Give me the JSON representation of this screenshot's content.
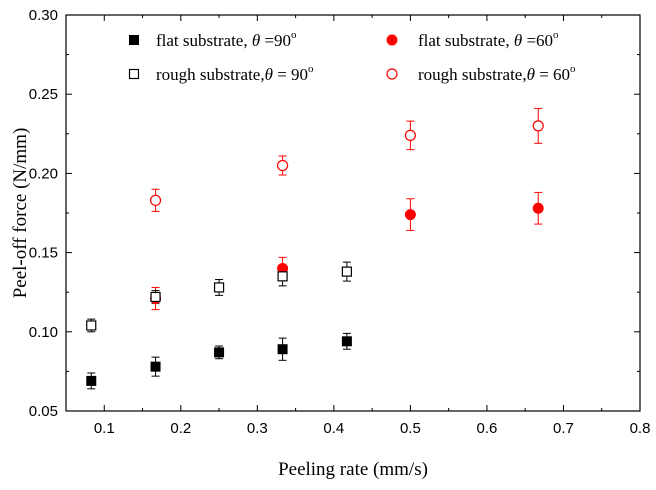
{
  "chart_data": {
    "type": "scatter",
    "xlabel": "Peeling rate (mm/s)",
    "ylabel": "Peel-off force (N/mm)",
    "xlim": [
      0.05,
      0.8
    ],
    "ylim": [
      0.05,
      0.3
    ],
    "xticks": [
      "0.1",
      "0.2",
      "0.3",
      "0.4",
      "0.5",
      "0.6",
      "0.7",
      "0.8"
    ],
    "yticks": [
      "0.05",
      "0.10",
      "0.15",
      "0.20",
      "0.25",
      "0.30"
    ],
    "grid": false,
    "legend_placement": "top",
    "series": [
      {
        "name": "flat substrate, θ =90",
        "legend_parts": [
          "flat substrate, ",
          "θ",
          " =90",
          "o"
        ],
        "marker": "filled-square",
        "color": "#000000",
        "points": [
          {
            "x": 0.083,
            "y": 0.069,
            "err": 0.005
          },
          {
            "x": 0.167,
            "y": 0.078,
            "err": 0.006
          },
          {
            "x": 0.25,
            "y": 0.087,
            "err": 0.004
          },
          {
            "x": 0.333,
            "y": 0.089,
            "err": 0.007
          },
          {
            "x": 0.417,
            "y": 0.094,
            "err": 0.005
          }
        ]
      },
      {
        "name": "flat substrate, θ =60",
        "legend_parts": [
          "flat substrate, ",
          "θ",
          " =60",
          "o"
        ],
        "marker": "filled-circle",
        "color": "#ff0000",
        "points": [
          {
            "x": 0.167,
            "y": 0.121,
            "err": 0.007
          },
          {
            "x": 0.333,
            "y": 0.14,
            "err": 0.007
          },
          {
            "x": 0.5,
            "y": 0.174,
            "err": 0.01
          },
          {
            "x": 0.667,
            "y": 0.178,
            "err": 0.01
          }
        ]
      },
      {
        "name": "rough substrate,θ = 90",
        "legend_parts": [
          "rough substrate,",
          "θ",
          " = 90",
          "o"
        ],
        "marker": "open-square",
        "color": "#000000",
        "points": [
          {
            "x": 0.083,
            "y": 0.104,
            "err": 0.004
          },
          {
            "x": 0.167,
            "y": 0.122,
            "err": 0.004
          },
          {
            "x": 0.25,
            "y": 0.128,
            "err": 0.005
          },
          {
            "x": 0.333,
            "y": 0.135,
            "err": 0.006
          },
          {
            "x": 0.417,
            "y": 0.138,
            "err": 0.006
          }
        ]
      },
      {
        "name": "rough substrate,θ = 60",
        "legend_parts": [
          "rough substrate,",
          "θ",
          " = 60",
          "o"
        ],
        "marker": "open-circle",
        "color": "#ff0000",
        "points": [
          {
            "x": 0.167,
            "y": 0.183,
            "err": 0.007
          },
          {
            "x": 0.333,
            "y": 0.205,
            "err": 0.006
          },
          {
            "x": 0.5,
            "y": 0.224,
            "err": 0.009
          },
          {
            "x": 0.667,
            "y": 0.23,
            "err": 0.011
          }
        ]
      }
    ]
  }
}
